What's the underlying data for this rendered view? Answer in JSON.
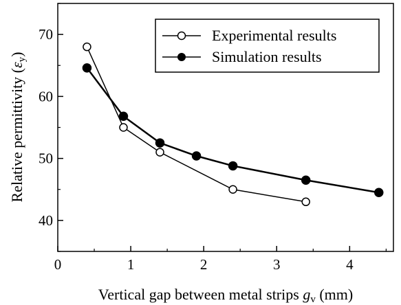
{
  "chart_data": {
    "type": "line",
    "xlabel": {
      "main": "Vertical gap between metal strips ",
      "symbol": "g",
      "subscript": "v",
      "unit": " (mm)"
    },
    "ylabel": {
      "main": "Relative permittivity (",
      "symbol": "ε",
      "subscript": "y",
      "close": ")"
    },
    "xlim": [
      0,
      4.6
    ],
    "ylim": [
      35,
      75
    ],
    "xticks": [
      0,
      1,
      2,
      3,
      4
    ],
    "yticks": [
      40,
      50,
      60,
      70
    ],
    "xtick_labels": [
      "0",
      "1",
      "2",
      "3",
      "4"
    ],
    "ytick_labels": [
      "40",
      "50",
      "60",
      "70"
    ],
    "grid": false,
    "legend_position": "top-right",
    "series": [
      {
        "name": "Experimental results",
        "marker": "open-circle",
        "x": [
          0.4,
          0.9,
          1.4,
          2.4,
          3.4
        ],
        "y": [
          68,
          55,
          51,
          45,
          43
        ]
      },
      {
        "name": "Simulation results",
        "marker": "filled-circle",
        "x": [
          0.4,
          0.9,
          1.4,
          1.9,
          2.4,
          3.4,
          4.4
        ],
        "y": [
          64.6,
          56.8,
          52.5,
          50.4,
          48.8,
          46.5,
          44.5
        ]
      }
    ]
  }
}
